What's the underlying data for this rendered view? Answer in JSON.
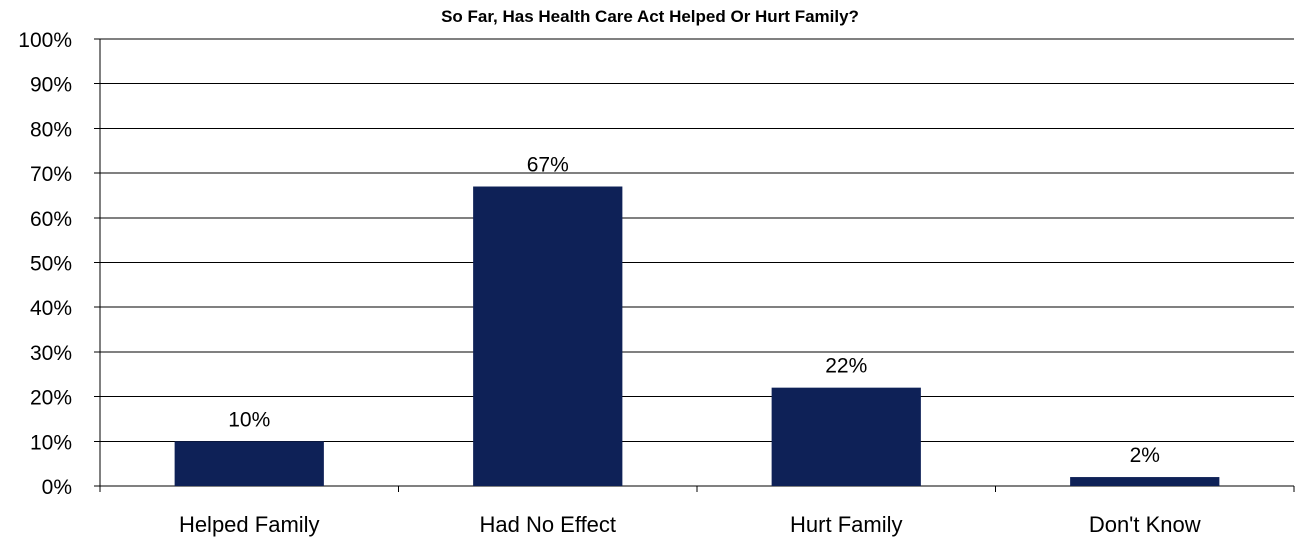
{
  "chart_data": {
    "type": "bar",
    "title": "So Far, Has Health Care Act Helped Or Hurt Family?",
    "categories": [
      "Helped Family",
      "Had No Effect",
      "Hurt Family",
      "Don't Know"
    ],
    "values": [
      10,
      67,
      22,
      2
    ],
    "data_labels": [
      "10%",
      "67%",
      "22%",
      "2%"
    ],
    "xlabel": "",
    "ylabel": "",
    "ylim": [
      0,
      100
    ],
    "yticks": [
      0,
      10,
      20,
      30,
      40,
      50,
      60,
      70,
      80,
      90,
      100
    ],
    "ytick_labels": [
      "0%",
      "10%",
      "20%",
      "30%",
      "40%",
      "50%",
      "60%",
      "70%",
      "80%",
      "90%",
      "100%"
    ],
    "grid": true,
    "legend": "none",
    "bar_color": "#0e2157",
    "grid_color": "#000000"
  }
}
